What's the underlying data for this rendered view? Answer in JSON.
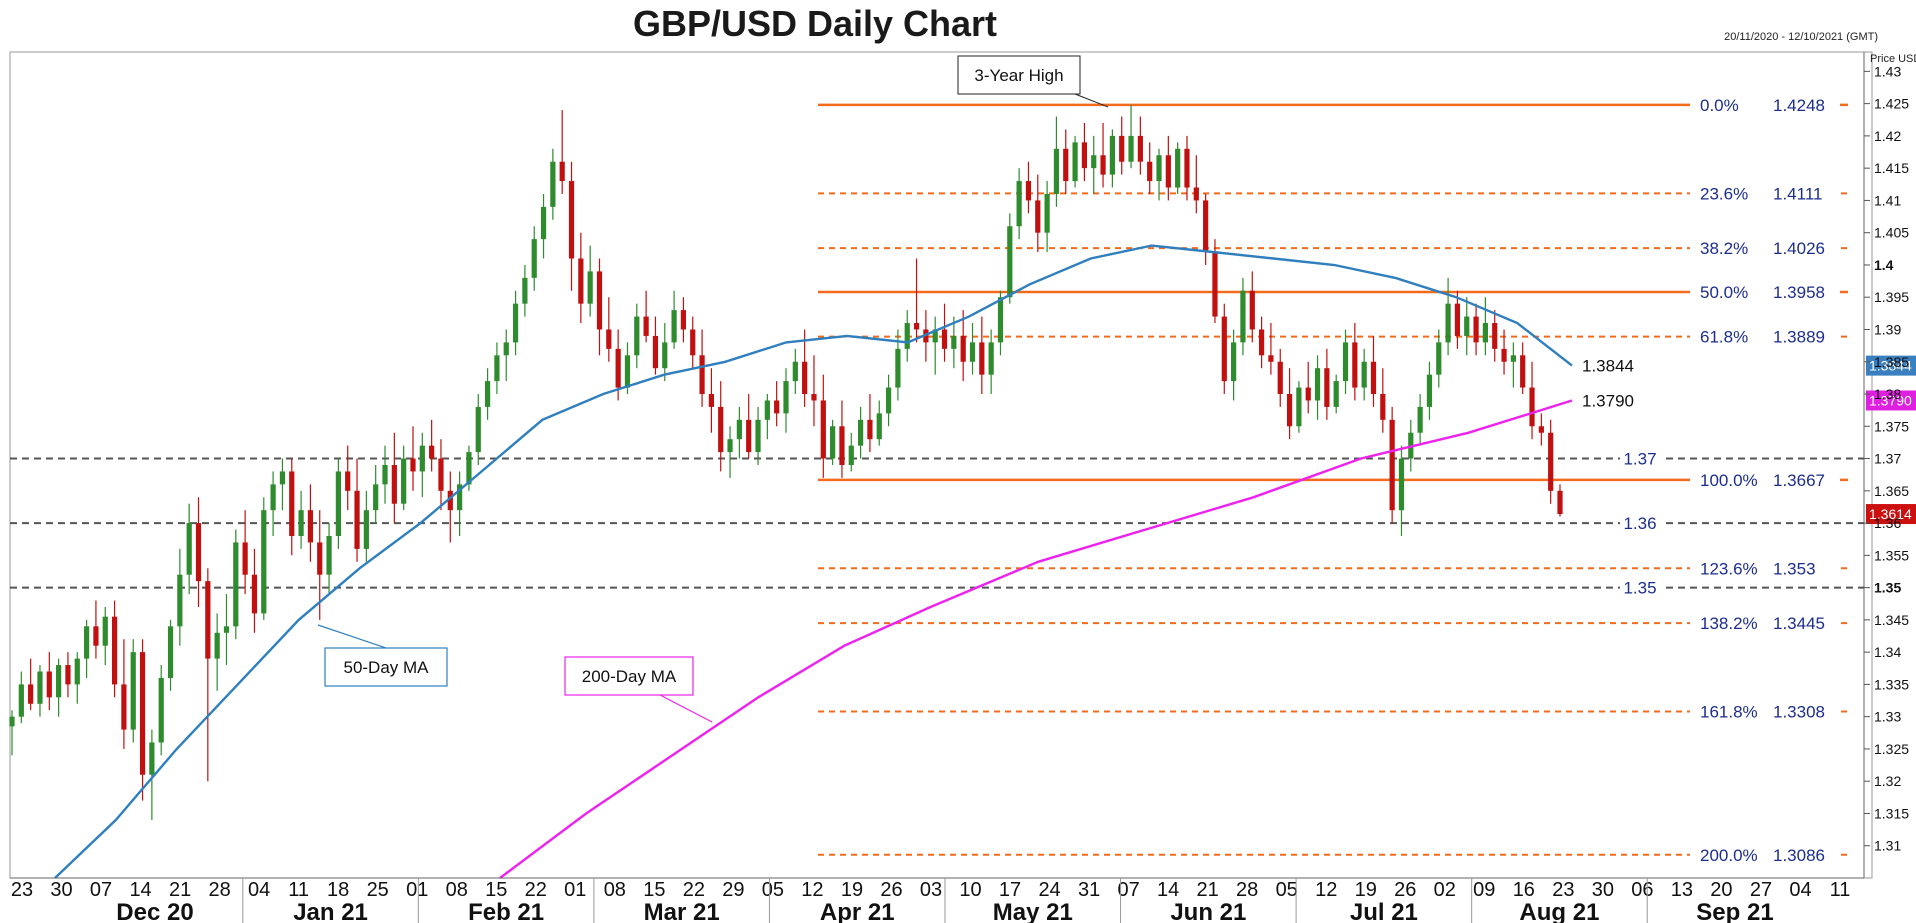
{
  "chart_data": {
    "type": "candlestick",
    "title": "GBP/USD Daily Chart",
    "date_range": "20/11/2020 - 12/10/2021 (GMT)",
    "y_axis_label": "Price USD",
    "ylim": [
      1.305,
      1.433
    ],
    "y_ticks": [
      1.31,
      1.315,
      1.32,
      1.325,
      1.33,
      1.335,
      1.34,
      1.345,
      1.35,
      1.355,
      1.36,
      1.365,
      1.37,
      1.375,
      1.38,
      1.385,
      1.39,
      1.395,
      1.4,
      1.405,
      1.41,
      1.415,
      1.42,
      1.425,
      1.43
    ],
    "y_tick_labels": [
      "1.31",
      "1.315",
      "1.32",
      "1.325",
      "1.33",
      "1.335",
      "1.34",
      "1.345",
      "1.35",
      "1.355",
      "1.36",
      "1.365",
      "1.37",
      "1.375",
      "1.38",
      "1.385",
      "1.39",
      "1.395",
      "1.4",
      "1.405",
      "1.41",
      "1.415",
      "1.42",
      "1.425",
      "1.43"
    ],
    "bold_y_ticks": [
      "1.4",
      "1.35"
    ],
    "x_day_labels": [
      "23",
      "30",
      "07",
      "14",
      "21",
      "28",
      "04",
      "11",
      "18",
      "25",
      "01",
      "08",
      "15",
      "22",
      "01",
      "08",
      "15",
      "22",
      "29",
      "05",
      "12",
      "19",
      "26",
      "03",
      "10",
      "17",
      "24",
      "31",
      "07",
      "14",
      "21",
      "28",
      "05",
      "12",
      "19",
      "26",
      "02",
      "09",
      "16",
      "23",
      "30",
      "06",
      "13",
      "20",
      "27",
      "04",
      "11"
    ],
    "x_month_labels": [
      "Dec 20",
      "Jan 21",
      "Feb 21",
      "Mar 21",
      "Apr 21",
      "May 21",
      "Jun 21",
      "Jul 21",
      "Aug 21",
      "Sep 21"
    ],
    "ohlc": [
      [
        1.3285,
        1.331,
        1.324,
        1.33
      ],
      [
        1.33,
        1.337,
        1.329,
        1.335
      ],
      [
        1.335,
        1.339,
        1.331,
        1.332
      ],
      [
        1.332,
        1.338,
        1.33,
        1.337
      ],
      [
        1.337,
        1.34,
        1.331,
        1.333
      ],
      [
        1.333,
        1.339,
        1.33,
        1.338
      ],
      [
        1.338,
        1.34,
        1.333,
        1.335
      ],
      [
        1.335,
        1.34,
        1.332,
        1.339
      ],
      [
        1.339,
        1.345,
        1.336,
        1.344
      ],
      [
        1.344,
        1.348,
        1.339,
        1.341
      ],
      [
        1.341,
        1.347,
        1.338,
        1.3455
      ],
      [
        1.3455,
        1.348,
        1.333,
        1.335
      ],
      [
        1.335,
        1.342,
        1.325,
        1.328
      ],
      [
        1.328,
        1.342,
        1.326,
        1.34
      ],
      [
        1.34,
        1.342,
        1.317,
        1.321
      ],
      [
        1.321,
        1.328,
        1.314,
        1.326
      ],
      [
        1.326,
        1.338,
        1.324,
        1.336
      ],
      [
        1.336,
        1.345,
        1.334,
        1.344
      ],
      [
        1.344,
        1.356,
        1.341,
        1.352
      ],
      [
        1.352,
        1.363,
        1.349,
        1.36
      ],
      [
        1.36,
        1.364,
        1.347,
        1.351
      ],
      [
        1.351,
        1.353,
        1.32,
        1.339
      ],
      [
        1.339,
        1.346,
        1.334,
        1.343
      ],
      [
        1.343,
        1.349,
        1.338,
        1.344
      ],
      [
        1.344,
        1.359,
        1.342,
        1.357
      ],
      [
        1.357,
        1.362,
        1.349,
        1.352
      ],
      [
        1.352,
        1.356,
        1.343,
        1.346
      ],
      [
        1.346,
        1.364,
        1.345,
        1.362
      ],
      [
        1.362,
        1.368,
        1.358,
        1.366
      ],
      [
        1.366,
        1.37,
        1.362,
        1.368
      ],
      [
        1.368,
        1.37,
        1.355,
        1.358
      ],
      [
        1.358,
        1.365,
        1.356,
        1.362
      ],
      [
        1.362,
        1.366,
        1.354,
        1.357
      ],
      [
        1.357,
        1.362,
        1.345,
        1.352
      ],
      [
        1.352,
        1.36,
        1.349,
        1.358
      ],
      [
        1.358,
        1.37,
        1.356,
        1.368
      ],
      [
        1.368,
        1.372,
        1.362,
        1.365
      ],
      [
        1.365,
        1.37,
        1.354,
        1.356
      ],
      [
        1.356,
        1.365,
        1.354,
        1.362
      ],
      [
        1.362,
        1.369,
        1.36,
        1.366
      ],
      [
        1.366,
        1.372,
        1.363,
        1.369
      ],
      [
        1.369,
        1.374,
        1.36,
        1.363
      ],
      [
        1.363,
        1.372,
        1.362,
        1.37
      ],
      [
        1.37,
        1.375,
        1.365,
        1.368
      ],
      [
        1.368,
        1.374,
        1.364,
        1.372
      ],
      [
        1.372,
        1.376,
        1.368,
        1.37
      ],
      [
        1.37,
        1.373,
        1.362,
        1.365
      ],
      [
        1.365,
        1.368,
        1.357,
        1.362
      ],
      [
        1.362,
        1.368,
        1.358,
        1.366
      ],
      [
        1.366,
        1.372,
        1.365,
        1.371
      ],
      [
        1.371,
        1.38,
        1.369,
        1.378
      ],
      [
        1.378,
        1.384,
        1.376,
        1.382
      ],
      [
        1.382,
        1.388,
        1.38,
        1.386
      ],
      [
        1.386,
        1.39,
        1.382,
        1.388
      ],
      [
        1.388,
        1.396,
        1.386,
        1.394
      ],
      [
        1.394,
        1.4,
        1.392,
        1.398
      ],
      [
        1.398,
        1.406,
        1.396,
        1.404
      ],
      [
        1.404,
        1.411,
        1.401,
        1.409
      ],
      [
        1.409,
        1.418,
        1.407,
        1.416
      ],
      [
        1.416,
        1.424,
        1.411,
        1.413
      ],
      [
        1.413,
        1.416,
        1.396,
        1.401
      ],
      [
        1.401,
        1.405,
        1.391,
        1.394
      ],
      [
        1.394,
        1.403,
        1.392,
        1.399
      ],
      [
        1.399,
        1.401,
        1.386,
        1.39
      ],
      [
        1.39,
        1.395,
        1.385,
        1.387
      ],
      [
        1.387,
        1.39,
        1.379,
        1.381
      ],
      [
        1.381,
        1.388,
        1.38,
        1.386
      ],
      [
        1.386,
        1.394,
        1.384,
        1.392
      ],
      [
        1.392,
        1.396,
        1.388,
        1.389
      ],
      [
        1.389,
        1.392,
        1.383,
        1.384
      ],
      [
        1.384,
        1.391,
        1.382,
        1.388
      ],
      [
        1.388,
        1.396,
        1.387,
        1.393
      ],
      [
        1.393,
        1.395,
        1.388,
        1.39
      ],
      [
        1.39,
        1.392,
        1.384,
        1.386
      ],
      [
        1.386,
        1.39,
        1.378,
        1.38
      ],
      [
        1.38,
        1.384,
        1.374,
        1.378
      ],
      [
        1.378,
        1.382,
        1.368,
        1.371
      ],
      [
        1.371,
        1.375,
        1.367,
        1.373
      ],
      [
        1.373,
        1.378,
        1.37,
        1.376
      ],
      [
        1.376,
        1.38,
        1.37,
        1.371
      ],
      [
        1.371,
        1.378,
        1.369,
        1.376
      ],
      [
        1.376,
        1.38,
        1.373,
        1.379
      ],
      [
        1.379,
        1.382,
        1.375,
        1.377
      ],
      [
        1.377,
        1.384,
        1.374,
        1.382
      ],
      [
        1.382,
        1.387,
        1.38,
        1.385
      ],
      [
        1.385,
        1.39,
        1.378,
        1.38
      ],
      [
        1.38,
        1.386,
        1.375,
        1.379
      ],
      [
        1.379,
        1.383,
        1.367,
        1.37
      ],
      [
        1.37,
        1.376,
        1.369,
        1.375
      ],
      [
        1.375,
        1.379,
        1.367,
        1.369
      ],
      [
        1.369,
        1.374,
        1.368,
        1.372
      ],
      [
        1.372,
        1.378,
        1.37,
        1.376
      ],
      [
        1.376,
        1.38,
        1.371,
        1.373
      ],
      [
        1.373,
        1.379,
        1.372,
        1.377
      ],
      [
        1.377,
        1.383,
        1.375,
        1.381
      ],
      [
        1.381,
        1.39,
        1.379,
        1.387
      ],
      [
        1.387,
        1.393,
        1.385,
        1.391
      ],
      [
        1.391,
        1.401,
        1.388,
        1.39
      ],
      [
        1.39,
        1.393,
        1.385,
        1.388
      ],
      [
        1.388,
        1.392,
        1.383,
        1.39
      ],
      [
        1.39,
        1.394,
        1.385,
        1.387
      ],
      [
        1.387,
        1.392,
        1.384,
        1.389
      ],
      [
        1.389,
        1.393,
        1.382,
        1.385
      ],
      [
        1.385,
        1.391,
        1.383,
        1.388
      ],
      [
        1.388,
        1.392,
        1.38,
        1.383
      ],
      [
        1.383,
        1.39,
        1.38,
        1.388
      ],
      [
        1.388,
        1.396,
        1.386,
        1.395
      ],
      [
        1.395,
        1.408,
        1.394,
        1.406
      ],
      [
        1.406,
        1.415,
        1.404,
        1.413
      ],
      [
        1.413,
        1.416,
        1.408,
        1.41
      ],
      [
        1.41,
        1.414,
        1.402,
        1.405
      ],
      [
        1.405,
        1.413,
        1.402,
        1.411
      ],
      [
        1.411,
        1.423,
        1.409,
        1.418
      ],
      [
        1.418,
        1.421,
        1.411,
        1.413
      ],
      [
        1.413,
        1.42,
        1.412,
        1.419
      ],
      [
        1.419,
        1.422,
        1.413,
        1.415
      ],
      [
        1.415,
        1.42,
        1.411,
        1.417
      ],
      [
        1.417,
        1.422,
        1.412,
        1.414
      ],
      [
        1.414,
        1.421,
        1.412,
        1.42
      ],
      [
        1.42,
        1.423,
        1.414,
        1.416
      ],
      [
        1.416,
        1.4248,
        1.415,
        1.42
      ],
      [
        1.42,
        1.423,
        1.414,
        1.416
      ],
      [
        1.416,
        1.419,
        1.411,
        1.413
      ],
      [
        1.413,
        1.418,
        1.41,
        1.417
      ],
      [
        1.417,
        1.42,
        1.41,
        1.412
      ],
      [
        1.412,
        1.419,
        1.411,
        1.418
      ],
      [
        1.418,
        1.42,
        1.41,
        1.412
      ],
      [
        1.412,
        1.417,
        1.408,
        1.41
      ],
      [
        1.41,
        1.411,
        1.4,
        1.402
      ],
      [
        1.402,
        1.404,
        1.391,
        1.392
      ],
      [
        1.392,
        1.394,
        1.38,
        1.382
      ],
      [
        1.382,
        1.39,
        1.379,
        1.388
      ],
      [
        1.388,
        1.398,
        1.386,
        1.396
      ],
      [
        1.396,
        1.399,
        1.388,
        1.39
      ],
      [
        1.39,
        1.392,
        1.384,
        1.386
      ],
      [
        1.386,
        1.391,
        1.383,
        1.385
      ],
      [
        1.385,
        1.387,
        1.378,
        1.38
      ],
      [
        1.38,
        1.384,
        1.373,
        1.375
      ],
      [
        1.375,
        1.382,
        1.374,
        1.381
      ],
      [
        1.381,
        1.385,
        1.377,
        1.379
      ],
      [
        1.379,
        1.386,
        1.376,
        1.384
      ],
      [
        1.384,
        1.387,
        1.376,
        1.378
      ],
      [
        1.378,
        1.383,
        1.377,
        1.382
      ],
      [
        1.382,
        1.39,
        1.38,
        1.388
      ],
      [
        1.388,
        1.391,
        1.379,
        1.381
      ],
      [
        1.381,
        1.387,
        1.379,
        1.385
      ],
      [
        1.385,
        1.389,
        1.378,
        1.38
      ],
      [
        1.38,
        1.384,
        1.374,
        1.376
      ],
      [
        1.376,
        1.378,
        1.36,
        1.362
      ],
      [
        1.362,
        1.372,
        1.358,
        1.37
      ],
      [
        1.37,
        1.376,
        1.368,
        1.374
      ],
      [
        1.374,
        1.38,
        1.372,
        1.378
      ],
      [
        1.378,
        1.385,
        1.376,
        1.383
      ],
      [
        1.383,
        1.39,
        1.381,
        1.388
      ],
      [
        1.388,
        1.398,
        1.386,
        1.394
      ],
      [
        1.394,
        1.396,
        1.387,
        1.389
      ],
      [
        1.389,
        1.395,
        1.386,
        1.392
      ],
      [
        1.392,
        1.394,
        1.386,
        1.388
      ],
      [
        1.388,
        1.395,
        1.386,
        1.391
      ],
      [
        1.391,
        1.393,
        1.385,
        1.387
      ],
      [
        1.387,
        1.39,
        1.383,
        1.385
      ],
      [
        1.385,
        1.388,
        1.381,
        1.386
      ],
      [
        1.386,
        1.388,
        1.38,
        1.381
      ],
      [
        1.381,
        1.385,
        1.373,
        1.375
      ],
      [
        1.375,
        1.377,
        1.372,
        1.374
      ],
      [
        1.374,
        1.376,
        1.363,
        1.365
      ],
      [
        1.365,
        1.366,
        1.361,
        1.3614
      ]
    ],
    "ma50": [
      [
        1.305,
        0
      ],
      [
        1.314,
        20
      ],
      [
        1.325,
        40
      ],
      [
        1.335,
        60
      ],
      [
        1.345,
        80
      ],
      [
        1.353,
        100
      ],
      [
        1.36,
        120
      ],
      [
        1.368,
        140
      ],
      [
        1.376,
        160
      ],
      [
        1.38,
        180
      ],
      [
        1.383,
        200
      ],
      [
        1.385,
        220
      ],
      [
        1.388,
        240
      ],
      [
        1.389,
        260
      ],
      [
        1.388,
        280
      ],
      [
        1.392,
        300
      ],
      [
        1.397,
        320
      ],
      [
        1.401,
        340
      ],
      [
        1.403,
        360
      ],
      [
        1.402,
        380
      ],
      [
        1.401,
        400
      ],
      [
        1.4,
        420
      ],
      [
        1.398,
        440
      ],
      [
        1.395,
        460
      ],
      [
        1.391,
        480
      ],
      [
        1.3844,
        498
      ]
    ],
    "ma200": [
      [
        1.305,
        0
      ],
      [
        1.315,
        40
      ],
      [
        1.324,
        80
      ],
      [
        1.333,
        120
      ],
      [
        1.341,
        160
      ],
      [
        1.347,
        200
      ],
      [
        1.354,
        250
      ],
      [
        1.359,
        300
      ],
      [
        1.364,
        350
      ],
      [
        1.37,
        400
      ],
      [
        1.374,
        450
      ],
      [
        1.379,
        498
      ]
    ],
    "fib_levels": [
      {
        "label": "0.0%",
        "value": "1.4248",
        "price": 1.4248,
        "style": "solid"
      },
      {
        "label": "23.6%",
        "value": "1.4111",
        "price": 1.4111,
        "style": "dashed"
      },
      {
        "label": "38.2%",
        "value": "1.4026",
        "price": 1.4026,
        "style": "dashed"
      },
      {
        "label": "50.0%",
        "value": "1.3958",
        "price": 1.3958,
        "style": "solid"
      },
      {
        "label": "61.8%",
        "value": "1.3889",
        "price": 1.3889,
        "style": "dashed"
      },
      {
        "label": "100.0%",
        "value": "1.3667",
        "price": 1.3667,
        "style": "solid"
      },
      {
        "label": "123.6%",
        "value": "1.353",
        "price": 1.353,
        "style": "dashed"
      },
      {
        "label": "138.2%",
        "value": "1.3445",
        "price": 1.3445,
        "style": "dashed"
      },
      {
        "label": "161.8%",
        "value": "1.3308",
        "price": 1.3308,
        "style": "dashed"
      },
      {
        "label": "200.0%",
        "value": "1.3086",
        "price": 1.3086,
        "style": "dashed"
      }
    ],
    "horizontal_levels": [
      {
        "label": "1.37",
        "price": 1.37
      },
      {
        "label": "1.36",
        "price": 1.36
      },
      {
        "label": "1.35",
        "price": 1.35
      }
    ],
    "price_tags": [
      {
        "label": "1.3844",
        "price": 1.3844,
        "color": "#3a7fbf"
      },
      {
        "label": "1.3790",
        "price": 1.379,
        "color": "#e020e0"
      },
      {
        "label": "1.3614",
        "price": 1.3614,
        "color": "#cc1010"
      }
    ],
    "annotations": {
      "high": "3-Year High",
      "ma50_label": "50-Day MA",
      "ma200_label": "200-Day MA",
      "ma50_value": "1.3844",
      "ma200_value": "1.3790"
    },
    "colors": {
      "up": "#2e8b2e",
      "down": "#c01010",
      "ma50": "#2f7fbf",
      "ma200": "#ee22ee",
      "fib": "#f26a1b",
      "level": "#555555"
    }
  }
}
